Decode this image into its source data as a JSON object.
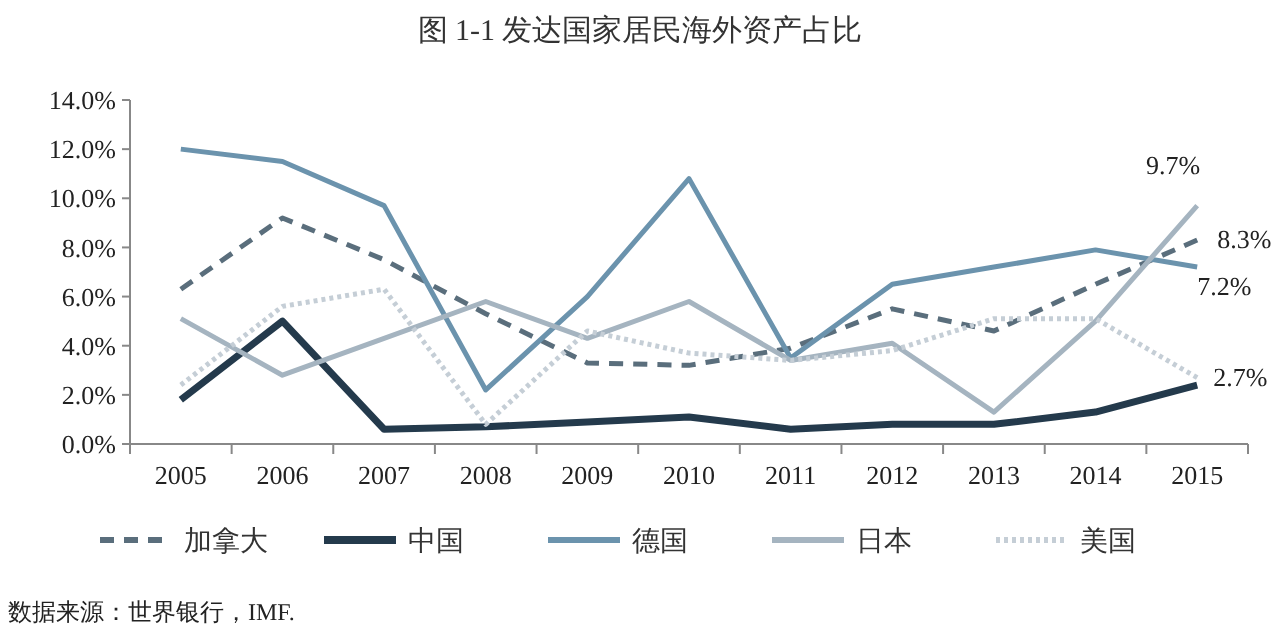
{
  "chart_data": {
    "type": "line",
    "title": "图 1-1  发达国家居民海外资产占比",
    "categories": [
      "2005",
      "2006",
      "2007",
      "2008",
      "2009",
      "2010",
      "2011",
      "2012",
      "2013",
      "2014",
      "2015"
    ],
    "series": [
      {
        "name": "加拿大",
        "color": "#5a6e7c",
        "line_style": "dashed",
        "values": [
          6.3,
          9.2,
          7.5,
          5.3,
          3.3,
          3.2,
          3.9,
          5.5,
          4.6,
          6.5,
          8.3
        ],
        "value_labels": [
          null,
          null,
          null,
          null,
          null,
          null,
          null,
          null,
          null,
          null,
          "8.3%"
        ]
      },
      {
        "name": "中国",
        "color": "#243a4c",
        "values": [
          1.8,
          5.0,
          0.6,
          0.7,
          0.9,
          1.1,
          0.6,
          0.8,
          0.8,
          1.3,
          2.4
        ]
      },
      {
        "name": "德国",
        "color": "#6b93ad",
        "values": [
          12.0,
          11.5,
          9.7,
          2.2,
          6.0,
          10.8,
          3.5,
          6.5,
          7.2,
          7.9,
          7.2
        ],
        "value_labels": [
          null,
          null,
          null,
          null,
          null,
          null,
          null,
          null,
          null,
          null,
          "7.2%"
        ]
      },
      {
        "name": "日本",
        "color": "#a5b4c0",
        "values": [
          5.1,
          2.8,
          4.3,
          5.8,
          4.3,
          5.8,
          3.4,
          4.1,
          1.3,
          5.0,
          9.7
        ],
        "value_labels": [
          null,
          null,
          null,
          null,
          null,
          null,
          null,
          null,
          null,
          null,
          "9.7%"
        ]
      },
      {
        "name": "美国",
        "color": "#c5ced6",
        "line_style": "dotted",
        "values": [
          2.4,
          5.6,
          6.3,
          0.8,
          4.6,
          3.7,
          3.4,
          3.8,
          5.1,
          5.1,
          2.7
        ],
        "value_labels": [
          null,
          null,
          null,
          null,
          null,
          null,
          null,
          null,
          null,
          null,
          "2.7%"
        ]
      }
    ],
    "ylim": [
      0,
      14
    ],
    "yticks": [
      {
        "value": 0,
        "label": "0.0%"
      },
      {
        "value": 2,
        "label": "2.0%"
      },
      {
        "value": 4,
        "label": "4.0%"
      },
      {
        "value": 6,
        "label": "6.0%"
      },
      {
        "value": 8,
        "label": "8.0%"
      },
      {
        "value": 10,
        "label": "10.0%"
      },
      {
        "value": 12,
        "label": "12.0%"
      },
      {
        "value": 14,
        "label": "14.0%"
      }
    ],
    "grid": false,
    "legend": "bottom",
    "marker": "none",
    "annotations": [
      "数据来源：世界银行，IMF."
    ]
  }
}
